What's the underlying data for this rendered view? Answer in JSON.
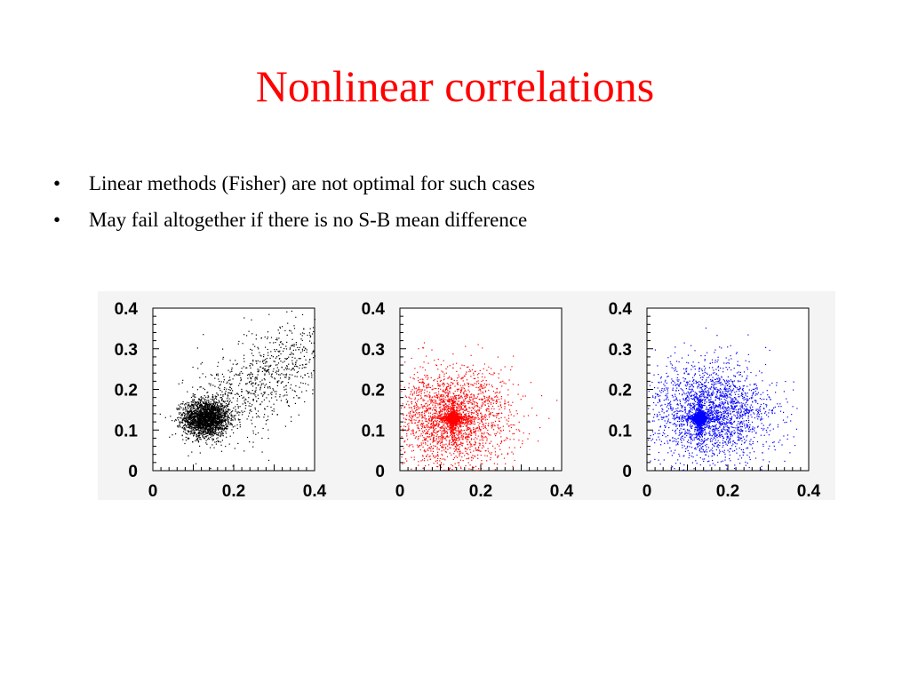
{
  "slide": {
    "title": "Nonlinear correlations",
    "title_color": "#ff0000",
    "bullets": [
      "Linear methods (Fisher) are not optimal for such cases",
      "May fail altogether if there is no S-B mean difference"
    ],
    "bullet_glyph": "•"
  },
  "chart_data": [
    {
      "type": "scatter",
      "title": "",
      "xlabel": "",
      "ylabel": "",
      "xlim": [
        0,
        0.4
      ],
      "ylim": [
        0,
        0.4
      ],
      "xticks": [
        "0",
        "0.2",
        "0.4"
      ],
      "yticks": [
        "0",
        "0.1",
        "0.2",
        "0.3",
        "0.4"
      ],
      "series": [
        {
          "color": "#000000",
          "distribution": "core cluster centered near (0.13, 0.13) with a spread tail toward (0.4, 0.35)",
          "center": [
            0.13,
            0.13
          ]
        }
      ],
      "grid": false
    },
    {
      "type": "scatter",
      "title": "",
      "xlabel": "",
      "ylabel": "",
      "xlim": [
        0,
        0.4
      ],
      "ylim": [
        0,
        0.4
      ],
      "xticks": [
        "0",
        "0.2",
        "0.4"
      ],
      "yticks": [
        "0",
        "0.1",
        "0.2",
        "0.3",
        "0.4"
      ],
      "series": [
        {
          "color": "#ff0000",
          "distribution": "star-shaped core at (0.13, 0.13) with a broad diffuse halo",
          "center": [
            0.13,
            0.13
          ]
        }
      ],
      "grid": false
    },
    {
      "type": "scatter",
      "title": "",
      "xlabel": "",
      "ylabel": "",
      "xlim": [
        0,
        0.4
      ],
      "ylim": [
        0,
        0.4
      ],
      "xticks": [
        "0",
        "0.2",
        "0.4"
      ],
      "yticks": [
        "0",
        "0.1",
        "0.2",
        "0.3",
        "0.4"
      ],
      "series": [
        {
          "color": "#0000ff",
          "distribution": "star-shaped core at (0.13, 0.13) with a diffuse halo extending toward upper right",
          "center": [
            0.13,
            0.13
          ]
        }
      ],
      "grid": false
    }
  ]
}
